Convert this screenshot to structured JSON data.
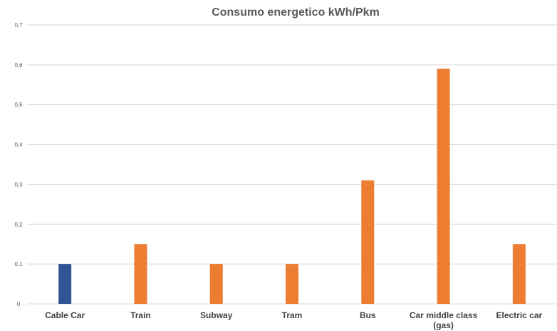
{
  "chart_data": {
    "type": "bar",
    "title": "Consumo energetico kWh/Pkm",
    "xlabel": "",
    "ylabel": "",
    "categories": [
      "Cable Car",
      "Train",
      "Subway",
      "Tram",
      "Bus",
      "Car middle class (gas)",
      "Electric car"
    ],
    "category_lines": [
      [
        "Cable Car"
      ],
      [
        "Train"
      ],
      [
        "Subway"
      ],
      [
        "Tram"
      ],
      [
        "Bus"
      ],
      [
        "Car middle class",
        "(gas)"
      ],
      [
        "Electric car"
      ]
    ],
    "values": [
      0.1,
      0.15,
      0.1,
      0.1,
      0.31,
      0.59,
      0.15
    ],
    "bar_colors": [
      "#2f5597",
      "#ed7d31",
      "#ed7d31",
      "#ed7d31",
      "#ed7d31",
      "#ed7d31",
      "#ed7d31"
    ],
    "ylim": [
      0,
      0.7
    ],
    "yticks": [
      "0",
      "0,1",
      "0,2",
      "0,3",
      "0,4",
      "0,5",
      "0,6",
      "0,7"
    ],
    "grid": true,
    "legend": "none"
  }
}
